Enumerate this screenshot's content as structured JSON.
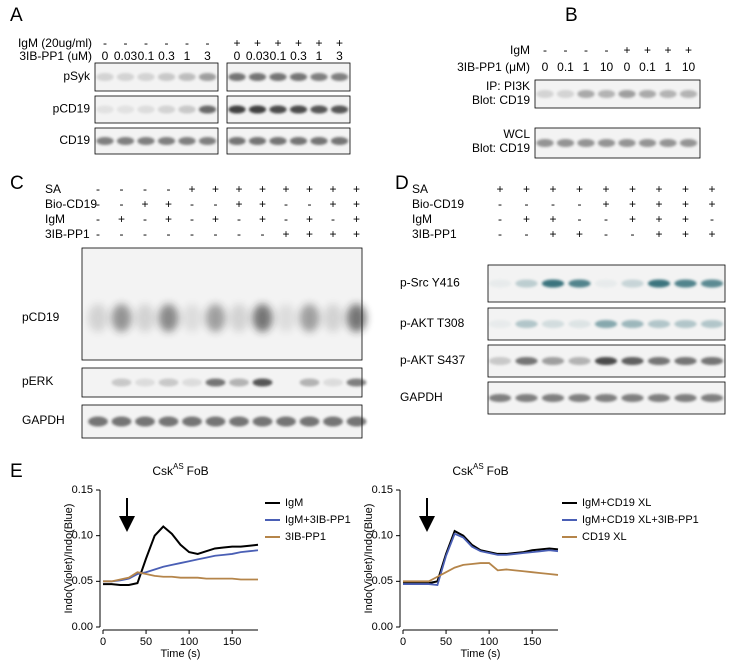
{
  "panel_a": {
    "letter": "A",
    "conditions": [
      {
        "label": "IgM (20ug/ml)",
        "lanes": [
          "-",
          "-",
          "-",
          "-",
          "-",
          "-",
          "+",
          "+",
          "+",
          "+",
          "+",
          "+"
        ]
      },
      {
        "label": "3IB-PP1 (uM)",
        "lanes": [
          "0",
          "0.03",
          "0.1",
          "0.3",
          "1",
          "3",
          "0",
          "0.03",
          "0.1",
          "0.3",
          "1",
          "3"
        ]
      }
    ],
    "rows": [
      "pSyk",
      "pCD19",
      "CD19"
    ]
  },
  "panel_b": {
    "letter": "B",
    "conditions": [
      {
        "label": "IgM",
        "lanes": [
          "-",
          "-",
          "-",
          "-",
          "+",
          "+",
          "+",
          "+"
        ]
      },
      {
        "label": "3IB-PP1 (μM)",
        "lanes": [
          "0",
          "0.1",
          "1",
          "10",
          "0",
          "0.1",
          "1",
          "10"
        ]
      }
    ],
    "rows": [
      [
        "IP: PI3K",
        "Blot: CD19"
      ],
      [
        "WCL",
        "Blot: CD19"
      ]
    ]
  },
  "panel_c": {
    "letter": "C",
    "conditions": [
      {
        "label": "SA",
        "lanes": [
          "-",
          "-",
          "-",
          "-",
          "+",
          "+",
          "+",
          "+",
          "+",
          "+",
          "+",
          "+"
        ]
      },
      {
        "label": "Bio-CD19",
        "lanes": [
          "-",
          "-",
          "+",
          "+",
          "-",
          "-",
          "+",
          "+",
          "-",
          "-",
          "+",
          "+"
        ]
      },
      {
        "label": "IgM",
        "lanes": [
          "-",
          "+",
          "-",
          "+",
          "-",
          "+",
          "-",
          "+",
          "-",
          "+",
          "-",
          "+"
        ]
      },
      {
        "label": "3IB-PP1",
        "lanes": [
          "-",
          "-",
          "-",
          "-",
          "-",
          "-",
          "-",
          "-",
          "+",
          "+",
          "+",
          "+"
        ]
      }
    ],
    "rows": [
      "pCD19",
      "pERK",
      "GAPDH"
    ]
  },
  "panel_d": {
    "letter": "D",
    "conditions": [
      {
        "label": "SA",
        "lanes": [
          "+",
          "+",
          "+",
          "+",
          "+",
          "+",
          "+",
          "+",
          "+"
        ]
      },
      {
        "label": "Bio-CD19",
        "lanes": [
          "-",
          "-",
          "-",
          "-",
          "+",
          "+",
          "+",
          "+",
          "+"
        ]
      },
      {
        "label": "IgM",
        "lanes": [
          "-",
          "+",
          "+",
          "-",
          "-",
          "+",
          "+",
          "+",
          "-"
        ]
      },
      {
        "label": "3IB-PP1",
        "lanes": [
          "-",
          "-",
          "+",
          "+",
          "-",
          "-",
          "+",
          "+",
          "+"
        ]
      }
    ],
    "rows": [
      "p-Src Y416",
      "p-AKT T308",
      "p-AKT S437",
      "GAPDH"
    ]
  },
  "panel_e": {
    "letter": "E"
  },
  "chart_data": [
    {
      "type": "line",
      "title": {
        "text": "Csk",
        "sup": "AS",
        "rest": "FoB"
      },
      "x_label": "Time (s)",
      "y_label": "Indo(Violet)/Indo(Blue)",
      "x": [
        0,
        10,
        20,
        30,
        40,
        50,
        60,
        70,
        80,
        90,
        100,
        110,
        120,
        130,
        140,
        150,
        160,
        170,
        180
      ],
      "xlim": [
        0,
        180
      ],
      "xticks": [
        0,
        50,
        100,
        150
      ],
      "ylim": [
        0,
        0.15
      ],
      "yticks": [
        {
          "value": 0,
          "label": "0.00"
        },
        {
          "value": 0.05,
          "label": "0.05"
        },
        {
          "value": 0.1,
          "label": "0.10"
        },
        {
          "value": 0.15,
          "label": "0.15"
        }
      ],
      "legend": "right",
      "series": [
        {
          "name": "IgM",
          "color": "#000000",
          "values": [
            0.047,
            0.047,
            0.046,
            0.046,
            0.048,
            0.075,
            0.1,
            0.11,
            0.102,
            0.09,
            0.082,
            0.08,
            0.083,
            0.086,
            0.087,
            0.088,
            0.088,
            0.089,
            0.09
          ]
        },
        {
          "name": "IgM+3IB-PP1",
          "color": "#4a5fb5",
          "values": [
            0.05,
            0.05,
            0.051,
            0.053,
            0.058,
            0.06,
            0.063,
            0.066,
            0.068,
            0.07,
            0.072,
            0.074,
            0.076,
            0.078,
            0.079,
            0.08,
            0.082,
            0.083,
            0.084
          ]
        },
        {
          "name": "3IB-PP1",
          "color": "#b5854a",
          "values": [
            0.05,
            0.05,
            0.052,
            0.054,
            0.06,
            0.058,
            0.056,
            0.055,
            0.055,
            0.054,
            0.054,
            0.054,
            0.053,
            0.053,
            0.053,
            0.053,
            0.052,
            0.052,
            0.052
          ]
        }
      ]
    },
    {
      "type": "line",
      "title": {
        "text": "Csk",
        "sup": "AS",
        "rest": "FoB"
      },
      "x_label": "Time (s)",
      "y_label": "Indo(Violet)/Indo(Blue)",
      "x": [
        0,
        10,
        20,
        30,
        40,
        50,
        60,
        70,
        80,
        90,
        100,
        110,
        120,
        130,
        140,
        150,
        160,
        170,
        180
      ],
      "xlim": [
        0,
        180
      ],
      "xticks": [
        0,
        50,
        100,
        150
      ],
      "ylim": [
        0,
        0.15
      ],
      "yticks": [
        {
          "value": 0,
          "label": "0.00"
        },
        {
          "value": 0.05,
          "label": "0.05"
        },
        {
          "value": 0.1,
          "label": "0.10"
        },
        {
          "value": 0.15,
          "label": "0.15"
        }
      ],
      "legend": "right",
      "series": [
        {
          "name": "IgM+CD19 XL",
          "color": "#000000",
          "values": [
            0.048,
            0.048,
            0.048,
            0.048,
            0.05,
            0.08,
            0.105,
            0.1,
            0.09,
            0.084,
            0.082,
            0.08,
            0.08,
            0.081,
            0.082,
            0.084,
            0.085,
            0.086,
            0.085
          ]
        },
        {
          "name": "IgM+CD19 XL+3IB-PP1",
          "color": "#4a5fb5",
          "values": [
            0.047,
            0.047,
            0.047,
            0.047,
            0.046,
            0.078,
            0.102,
            0.098,
            0.088,
            0.083,
            0.081,
            0.079,
            0.079,
            0.08,
            0.081,
            0.082,
            0.083,
            0.084,
            0.083
          ]
        },
        {
          "name": "CD19 XL",
          "color": "#b5854a",
          "values": [
            0.05,
            0.05,
            0.05,
            0.05,
            0.055,
            0.06,
            0.065,
            0.068,
            0.069,
            0.07,
            0.07,
            0.062,
            0.063,
            0.062,
            0.061,
            0.06,
            0.059,
            0.058,
            0.057
          ]
        }
      ]
    }
  ]
}
